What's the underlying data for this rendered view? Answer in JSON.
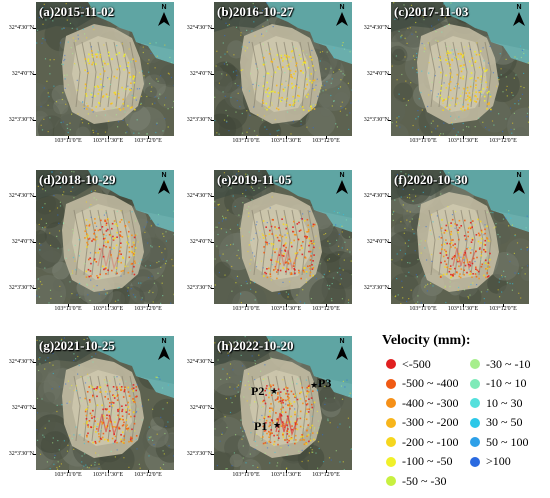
{
  "panels": [
    {
      "label": "(a)2015-11-02",
      "intensity": 0.35
    },
    {
      "label": "(b)2016-10-27",
      "intensity": 0.45
    },
    {
      "label": "(c)2017-11-03",
      "intensity": 0.5
    },
    {
      "label": "(d)2018-10-29",
      "intensity": 0.65
    },
    {
      "label": "(e)2019-11-05",
      "intensity": 0.72
    },
    {
      "label": "(f)2020-10-30",
      "intensity": 0.8
    },
    {
      "label": "(g)2021-10-25",
      "intensity": 0.9
    },
    {
      "label": "(h)2022-10-20",
      "intensity": 1.0
    }
  ],
  "axes": {
    "y_ticks": [
      "32°4'30\"N",
      "32°4'0\"N",
      "32°3'30\"N"
    ],
    "x_ticks": [
      "103°11'0\"E",
      "103°11'30\"E",
      "103°12'0\"E"
    ]
  },
  "north_arrow": {
    "letter": "N",
    "icon": "north-arrow-icon"
  },
  "points": [
    {
      "label": "P1"
    },
    {
      "label": "P2"
    },
    {
      "label": "P3"
    }
  ],
  "legend": {
    "title": "Velocity (mm):",
    "items": [
      {
        "label": "<-500",
        "color": "#e02020"
      },
      {
        "label": "-500 ~ -400",
        "color": "#f05a14"
      },
      {
        "label": "-400 ~ -300",
        "color": "#f59018"
      },
      {
        "label": "-300 ~ -200",
        "color": "#f7b51c"
      },
      {
        "label": "-200 ~ -100",
        "color": "#f5d61e"
      },
      {
        "label": "-100 ~ -50",
        "color": "#f0f02a"
      },
      {
        "label": "-50 ~ -30",
        "color": "#c8f040"
      },
      {
        "label": "-30 ~ -10",
        "color": "#a6ee8c"
      },
      {
        "label": "-10 ~ 10",
        "color": "#7eeab8"
      },
      {
        "label": "10 ~ 30",
        "color": "#54e0dc"
      },
      {
        "label": "30 ~ 50",
        "color": "#2cc8e8"
      },
      {
        "label": "50 ~ 100",
        "color": "#2ea0e8"
      },
      {
        "label": ">100",
        "color": "#2a6ae0"
      }
    ]
  }
}
